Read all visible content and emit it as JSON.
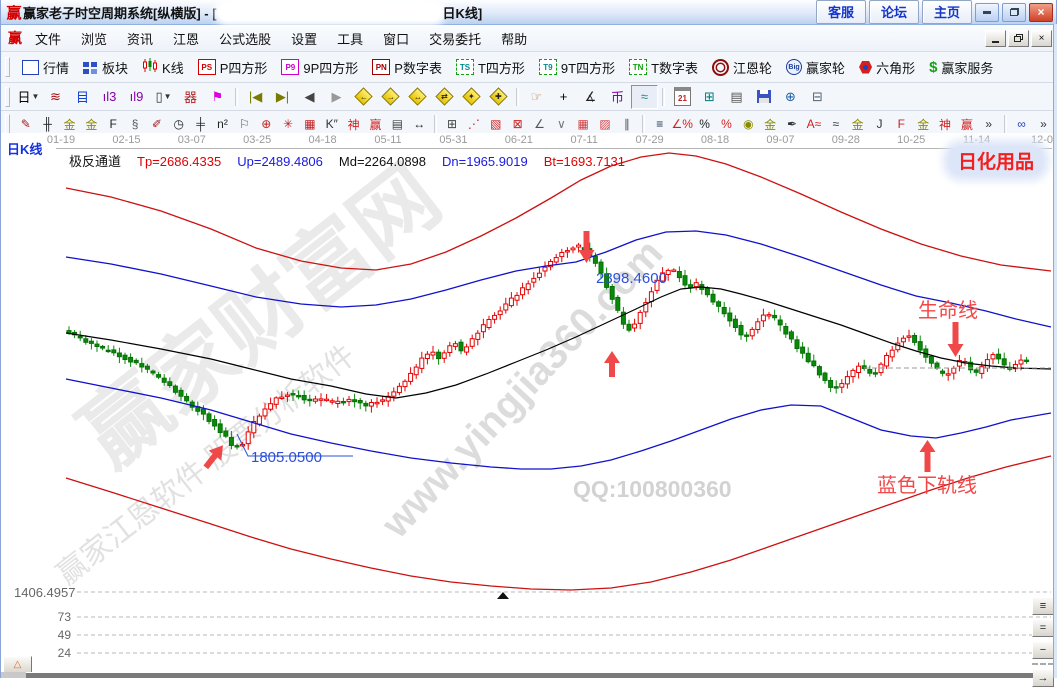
{
  "window": {
    "logo_text": "赢",
    "title_prefix": "赢家老子时空周期系统[纵横版] - [",
    "title_suffix": "日K线]",
    "quick_buttons": [
      {
        "name": "service",
        "label": "客服"
      },
      {
        "name": "forum",
        "label": "论坛"
      },
      {
        "name": "home",
        "label": "主页"
      }
    ]
  },
  "menu_bar": {
    "items": [
      {
        "name": "file",
        "label": "文件"
      },
      {
        "name": "browse",
        "label": "浏览"
      },
      {
        "name": "news",
        "label": "资讯"
      },
      {
        "name": "gann",
        "label": "江恩"
      },
      {
        "name": "formula-picker",
        "label": "公式选股"
      },
      {
        "name": "settings",
        "label": "设置"
      },
      {
        "name": "tools",
        "label": "工具"
      },
      {
        "name": "window",
        "label": "窗口"
      },
      {
        "name": "trade-entrust",
        "label": "交易委托"
      },
      {
        "name": "help",
        "label": "帮助"
      }
    ]
  },
  "main_toolbar": [
    {
      "name": "quotes",
      "label": "行情",
      "icon": "quotes-grid-icon",
      "type": "grid"
    },
    {
      "name": "sectors",
      "label": "板块",
      "icon": "sectors-blocks-icon",
      "type": "blocks"
    },
    {
      "name": "kline",
      "label": "K线",
      "icon": "kline-candles-icon",
      "type": "kline"
    },
    {
      "name": "p-square",
      "label": "P四方形",
      "icon": "ps-badge-icon",
      "type": "badge",
      "badge": "PS",
      "color": "#d00000",
      "border": "#d00000",
      "dashed": false
    },
    {
      "name": "9p-square",
      "label": "9P四方形",
      "icon": "p9-badge-icon",
      "type": "badge",
      "badge": "P9",
      "color": "#cc00cc",
      "border": "#cc00cc",
      "dashed": false
    },
    {
      "name": "p-number-table",
      "label": "P数字表",
      "icon": "pn-badge-icon",
      "type": "badge",
      "badge": "PN",
      "color": "#a00000",
      "border": "#a00000",
      "dashed": false
    },
    {
      "name": "t-square",
      "label": "T四方形",
      "icon": "ts-badge-icon",
      "type": "badge",
      "badge": "TS",
      "color": "#008a8a",
      "border": "#10a010",
      "dashed": true
    },
    {
      "name": "9t-square",
      "label": "9T四方形",
      "icon": "t9-badge-icon",
      "type": "badge",
      "badge": "T9",
      "color": "#008a8a",
      "border": "#10a010",
      "dashed": true
    },
    {
      "name": "t-number-table",
      "label": "T数字表",
      "icon": "tn-badge-icon",
      "type": "badge",
      "badge": "TN",
      "color": "#10a010",
      "border": "#10a010",
      "dashed": true
    },
    {
      "name": "gann-wheel",
      "label": "江恩轮",
      "icon": "gann-wheel-icon",
      "type": "wheel"
    },
    {
      "name": "winner-wheel",
      "label": "赢家轮",
      "icon": "winner-wheel-icon",
      "type": "big",
      "badge": "Big"
    },
    {
      "name": "hexagon",
      "label": "六角形",
      "icon": "hexagon-icon",
      "type": "hex"
    },
    {
      "name": "winner-service",
      "label": "赢家服务",
      "icon": "service-dollar-icon",
      "type": "dollar",
      "badge": "$"
    }
  ],
  "tool_toolbar": [
    {
      "name": "period-day-selector",
      "glyph": "日",
      "color": "#000000",
      "dropdown": true
    },
    {
      "name": "wave-scribble-icon",
      "glyph": "≋",
      "color": "#a01010"
    },
    {
      "name": "info-document-icon",
      "glyph": "目",
      "color": "#1040cc"
    },
    {
      "name": "bars-3-icon",
      "glyph": "ıl3",
      "color": "#8800aa"
    },
    {
      "name": "bars-9-icon",
      "glyph": "ıl9",
      "color": "#8800aa"
    },
    {
      "name": "candle-style-selector",
      "glyph": "▯",
      "color": "#333333",
      "dropdown": true
    },
    {
      "name": "pattern-box-icon",
      "glyph": "器",
      "color": "#b02020"
    },
    {
      "name": "flag-histogram-icon",
      "glyph": "⚑",
      "color": "#dd00dd"
    },
    {
      "name": "goto-start-icon",
      "glyph": "|◀",
      "color": "#7a7a00",
      "sep_before": true
    },
    {
      "name": "goto-end-icon",
      "glyph": "▶|",
      "color": "#7a7a00"
    },
    {
      "name": "step-back-icon",
      "glyph": "◀",
      "color": "#444444"
    },
    {
      "name": "step-forward-icon",
      "glyph": "▶",
      "color": "#999999"
    },
    {
      "name": "zoom-diamond-left-icon",
      "type": "diamond",
      "glyph": "←"
    },
    {
      "name": "zoom-diamond-right-icon",
      "type": "diamond",
      "glyph": "→"
    },
    {
      "name": "zoom-diamond-narrow-icon",
      "type": "diamond",
      "glyph": "↔"
    },
    {
      "name": "zoom-diamond-swap-icon",
      "type": "diamond",
      "glyph": "⇄"
    },
    {
      "name": "zoom-diamond-star-icon",
      "type": "diamond",
      "glyph": "✦"
    },
    {
      "name": "zoom-diamond-cross-icon",
      "type": "diamond",
      "glyph": "✚"
    },
    {
      "name": "hand-pan-icon",
      "glyph": "☞",
      "color": "#b98048",
      "sep_before": true
    },
    {
      "name": "crosshair-icon",
      "glyph": "+",
      "color": "#000000"
    },
    {
      "name": "angle-measure-icon",
      "glyph": "∡",
      "color": "#222222"
    },
    {
      "name": "gann-flag-icon",
      "glyph": "币",
      "color": "#8800aa"
    },
    {
      "name": "freehand-draw-icon",
      "glyph": "≈",
      "color": "#1f8a8a",
      "active": true
    },
    {
      "name": "calendar-icon",
      "type": "cal",
      "text": "21",
      "sep_before": true
    },
    {
      "name": "calculator-icon",
      "glyph": "⊞",
      "color": "#007a7a"
    },
    {
      "name": "notepad-icon",
      "glyph": "▤",
      "color": "#555555"
    },
    {
      "name": "save-icon",
      "type": "floppy"
    },
    {
      "name": "export-web-icon",
      "glyph": "⊕",
      "color": "#2060a0"
    },
    {
      "name": "print-icon",
      "glyph": "⊟",
      "color": "#556070"
    }
  ],
  "draw_toolbar": [
    {
      "name": "knife-tool-icon",
      "glyph": "✎",
      "color": "#a02020"
    },
    {
      "name": "ruler-ticks-icon",
      "glyph": "╫",
      "color": "#222222"
    },
    {
      "name": "gold-ruler-icon",
      "glyph": "金",
      "color": "#8a8a00"
    },
    {
      "name": "gold-ruler-2-icon",
      "glyph": "金",
      "color": "#8a8a00"
    },
    {
      "name": "f-ruler-icon",
      "glyph": "F",
      "color": "#222222"
    },
    {
      "name": "spiral-icon",
      "glyph": "§",
      "color": "#555555"
    },
    {
      "name": "pen-ruler-icon",
      "glyph": "✐",
      "color": "#a02020"
    },
    {
      "name": "time-circle-icon",
      "glyph": "◷",
      "color": "#222222"
    },
    {
      "name": "long-ruler-icon",
      "glyph": "╪",
      "color": "#222222"
    },
    {
      "name": "n-square-icon",
      "glyph": "n²",
      "color": "#222222"
    },
    {
      "name": "flag-marker-icon",
      "glyph": "⚐",
      "color": "#555555"
    },
    {
      "name": "gann-circle-icon",
      "glyph": "⊕",
      "color": "#c02020"
    },
    {
      "name": "spider-web-icon",
      "glyph": "✳",
      "color": "#c02020"
    },
    {
      "name": "grid-box-icon",
      "glyph": "▦",
      "color": "#c02020"
    },
    {
      "name": "k-quote-icon",
      "glyph": "K″",
      "color": "#333333"
    },
    {
      "name": "shen-ruler-icon",
      "glyph": "神",
      "color": "#d02020"
    },
    {
      "name": "ying-ruler-icon",
      "glyph": "赢",
      "color": "#d02020"
    },
    {
      "name": "ruler-123-icon",
      "glyph": "▤",
      "color": "#444444"
    },
    {
      "name": "width-measure-icon",
      "glyph": "↔",
      "color": "#222222"
    },
    {
      "name": "grid-anchor-icon",
      "glyph": "⊞",
      "color": "#444444",
      "sep_before": true
    },
    {
      "name": "fan-rays-icon",
      "glyph": "⋰",
      "color": "#d02020"
    },
    {
      "name": "box-rays-icon",
      "glyph": "▧",
      "color": "#d02020"
    },
    {
      "name": "box-cross-rays-icon",
      "glyph": "⊠",
      "color": "#d02020"
    },
    {
      "name": "angle-rays-icon",
      "glyph": "∠",
      "color": "#555555"
    },
    {
      "name": "v-lines-icon",
      "glyph": "∨",
      "color": "#777777"
    },
    {
      "name": "red-grid-icon",
      "glyph": "▦",
      "color": "#d04040"
    },
    {
      "name": "red-grid-arrow-icon",
      "glyph": "▨",
      "color": "#d04040"
    },
    {
      "name": "parallel-lines-icon",
      "glyph": "∥",
      "color": "#555555"
    },
    {
      "name": "percent-bars-icon",
      "glyph": "≡",
      "color": "#223355",
      "sep_before": true
    },
    {
      "name": "angle-percent-icon",
      "glyph": "∠%",
      "color": "#d02020"
    },
    {
      "name": "percent-icon",
      "glyph": "%",
      "color": "#222222"
    },
    {
      "name": "percent-strike-icon",
      "glyph": "%",
      "color": "#d02020"
    },
    {
      "name": "gold-circle-icon",
      "glyph": "◉",
      "color": "#8a8a00"
    },
    {
      "name": "gold-bars-icon",
      "glyph": "金",
      "color": "#8a8a00"
    },
    {
      "name": "brush-knife-icon",
      "glyph": "✒",
      "color": "#333333"
    },
    {
      "name": "a-wave-icon",
      "glyph": "A≈",
      "color": "#d02020"
    },
    {
      "name": "ruler-wave-icon",
      "glyph": "≈",
      "color": "#333333"
    },
    {
      "name": "gold-lines-icon",
      "glyph": "金",
      "color": "#8a8a00"
    },
    {
      "name": "j-angle-icon",
      "glyph": "J",
      "color": "#333333"
    },
    {
      "name": "f-angle-icon",
      "glyph": "F",
      "color": "#d02020"
    },
    {
      "name": "gold-angle-icon",
      "glyph": "金",
      "color": "#8a8a00"
    },
    {
      "name": "shen-angle-icon",
      "glyph": "神",
      "color": "#d02020"
    },
    {
      "name": "ying-angle-icon",
      "glyph": "赢",
      "color": "#d02020"
    },
    {
      "name": "more-tools-icon",
      "glyph": "»",
      "color": "#333333"
    },
    {
      "name": "infinity-icon",
      "glyph": "∞",
      "color": "#2040d0",
      "sep_before": true
    },
    {
      "name": "more-tools-2-icon",
      "glyph": "»",
      "color": "#333333"
    }
  ],
  "chart": {
    "panel_label": "日K线",
    "date_axis": [
      "01-19",
      "02-15",
      "03-07",
      "03-25",
      "04-18",
      "05-11",
      "05-31",
      "06-21",
      "07-11",
      "07-29",
      "08-18",
      "09-07",
      "09-28",
      "10-25",
      "11-14",
      "12-0"
    ],
    "indicator": {
      "name": "极反通道",
      "values": [
        {
          "text": "Tp=2686.4335",
          "color": "#e00000"
        },
        {
          "text": "Up=2489.4806",
          "color": "#1a1ae0"
        },
        {
          "text": "Md=2264.0898",
          "color": "#111111"
        },
        {
          "text": "Dn=1965.9019",
          "color": "#1a1ae0"
        },
        {
          "text": "Bt=1693.7131",
          "color": "#e00000"
        }
      ]
    },
    "sector_tag": "日化用品",
    "annotations": {
      "peak_price": "2398.4600",
      "trough_price": "1805.0500",
      "life_line_label": "生命线",
      "lower_rail_label": "蓝色下轨线"
    },
    "watermarks": {
      "brand": "赢家财富网",
      "software": "赢家江恩软件 股票分析软件",
      "site": "www.yingjia360.com",
      "qq": "QQ:100800360"
    },
    "scale": {
      "hidden_pane_value": "1406.4957",
      "levels": [
        "73",
        "49",
        "24"
      ]
    },
    "colors": {
      "channel_outer": "#cc1111",
      "channel_inner": "#1111cc",
      "channel_mid": "#000000",
      "candle_up": "#e40000",
      "candle_down": "#0a8a0a",
      "annotation_red": "#f24848",
      "price_label_blue": "#2c50d8"
    }
  },
  "pane_controls": {
    "left_expand_glyph": "△",
    "right": [
      {
        "name": "three-pane-button",
        "glyph": "≡"
      },
      {
        "name": "two-pane-button",
        "glyph": "="
      },
      {
        "name": "one-pane-button",
        "glyph": "−"
      },
      {
        "name": "scroll-right-button",
        "glyph": "→"
      }
    ]
  }
}
